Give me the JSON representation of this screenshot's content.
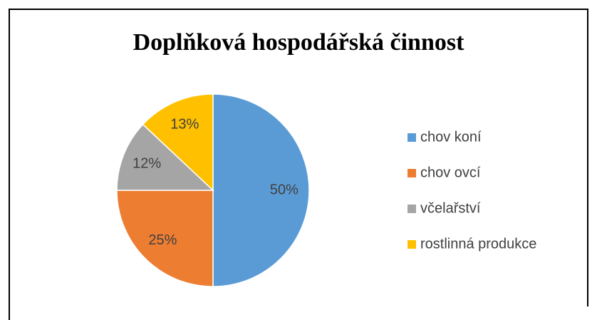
{
  "chart_data": {
    "type": "pie",
    "title": "Doplňková hospodářská činnost",
    "categories": [
      "chov koní",
      "chov ovcí",
      "včelařství",
      "rostlinná produkce"
    ],
    "values": [
      50,
      25,
      12,
      13
    ],
    "value_labels": [
      "50%",
      "25%",
      "12%",
      "13%"
    ],
    "colors": [
      "#5b9bd5",
      "#ed7d31",
      "#a5a5a5",
      "#ffc000"
    ],
    "legend": "right"
  }
}
